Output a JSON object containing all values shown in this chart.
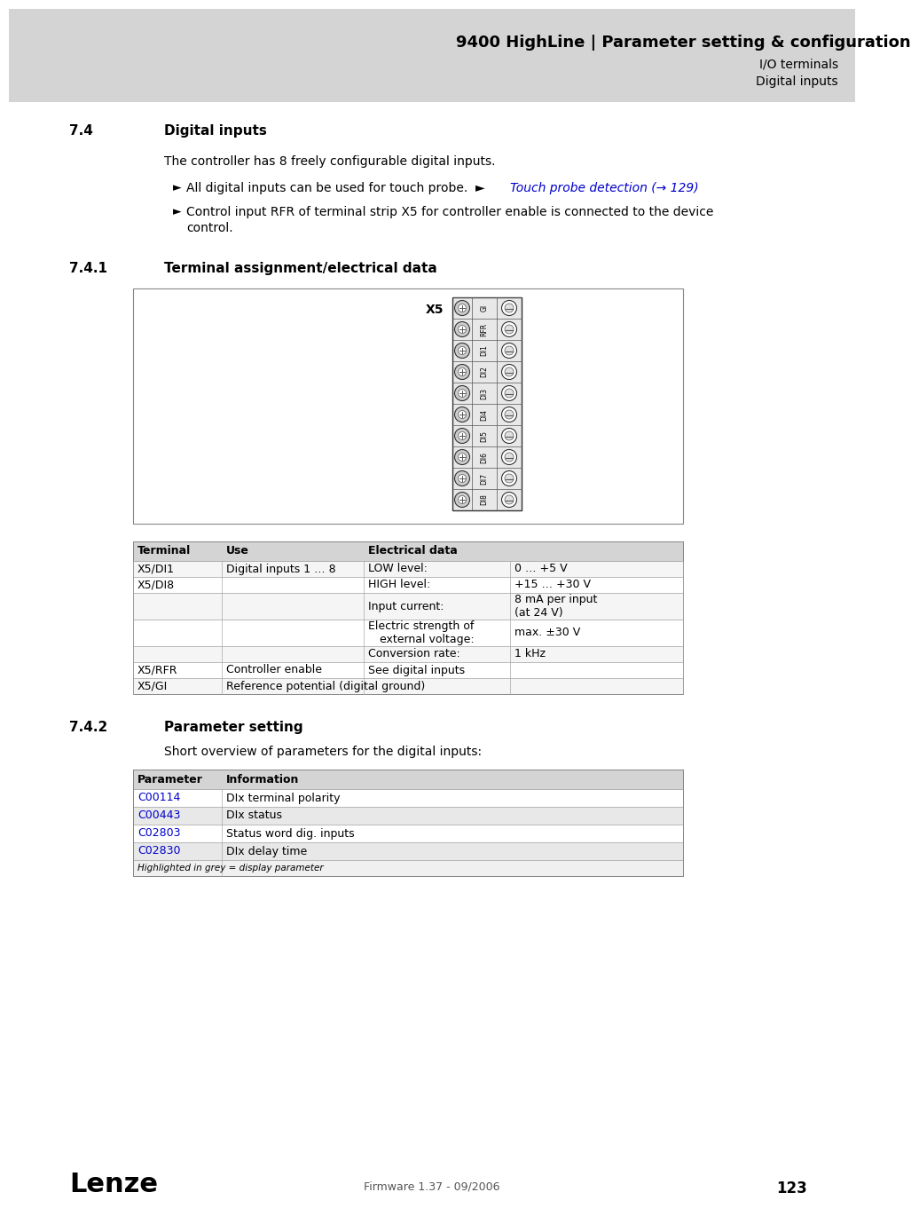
{
  "header_bg": "#d4d4d4",
  "header_title": "9400 HighLine | Parameter setting & configuration",
  "header_sub1": "I/O terminals",
  "header_sub2": "Digital inputs",
  "page_bg": "#ffffff",
  "section_74_num": "7.4",
  "section_74_title": "Digital inputs",
  "section_74_body": "The controller has 8 freely configurable digital inputs.",
  "bullet1_plain": "All digital inputs can be used for touch probe.  ► Touch probe detection (→ 129)",
  "bullet1_link": "Touch probe detection (→ 129)",
  "bullet2": "Control input RFR of terminal strip X5 for controller enable is connected to the device control.",
  "section_741_num": "7.4.1",
  "section_741_title": "Terminal assignment/electrical data",
  "connector_label": "X5",
  "connector_pins": [
    "GI",
    "RFR",
    "DI1",
    "DI2",
    "DI3",
    "DI4",
    "DI5",
    "DI6",
    "DI7",
    "DI8"
  ],
  "table1_headers": [
    "Terminal",
    "Use",
    "Electrical data"
  ],
  "table1_col_bg": "#d4d4d4",
  "table1_rows": [
    {
      "terminal": "X5/DI1",
      "use": "Digital inputs 1 … 8",
      "elec_label": "LOW level:",
      "elec_value": "0 … +5 V"
    },
    {
      "terminal": "X5/DI8",
      "use": "",
      "elec_label": "HIGH level:",
      "elec_value": "+15 … +30 V"
    },
    {
      "terminal": "",
      "use": "",
      "elec_label": "Input current:",
      "elec_value": "8 mA per input\n(at 24 V)"
    },
    {
      "terminal": "",
      "use": "",
      "elec_label": "Electric strength of\nexternal voltage:",
      "elec_value": "max. ±30 V"
    },
    {
      "terminal": "",
      "use": "",
      "elec_label": "Conversion rate:",
      "elec_value": "1 kHz"
    },
    {
      "terminal": "X5/RFR",
      "use": "Controller enable",
      "elec_label": "See digital inputs",
      "elec_value": ""
    },
    {
      "terminal": "X5/GI",
      "use": "Reference potential (digital ground)",
      "elec_label": "",
      "elec_value": ""
    }
  ],
  "section_742_num": "7.4.2",
  "section_742_title": "Parameter setting",
  "section_742_body": "Short overview of parameters for the digital inputs:",
  "table2_headers": [
    "Parameter",
    "Information"
  ],
  "table2_col_bg": "#d4d4d4",
  "table2_rows": [
    {
      "param": "C00114",
      "info": "DIx terminal polarity",
      "bg": "#ffffff"
    },
    {
      "param": "C00443",
      "info": "DIx status",
      "bg": "#e8e8e8"
    },
    {
      "param": "C02803",
      "info": "Status word dig. inputs",
      "bg": "#ffffff"
    },
    {
      "param": "C02830",
      "info": "DIx delay time",
      "bg": "#e8e8e8"
    }
  ],
  "table2_note": "Highlighted in grey = display parameter",
  "link_color": "#0000cc",
  "footer_text": "Firmware 1.37 - 09/2006",
  "footer_page": "123",
  "lenze_text": "Lenze"
}
